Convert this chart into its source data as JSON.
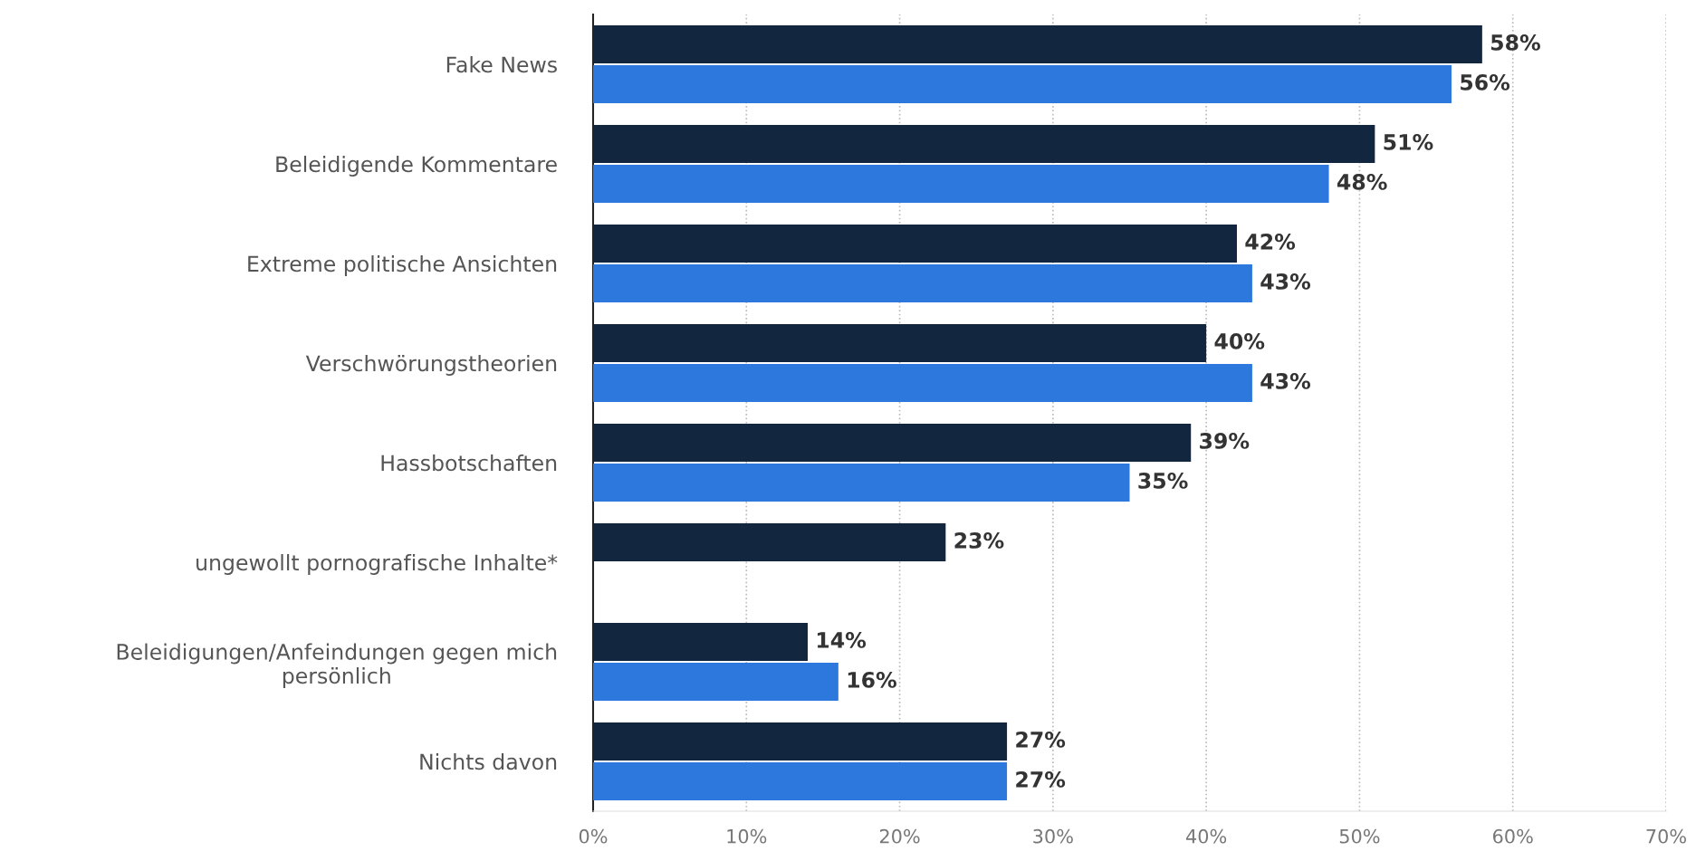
{
  "chart_data": {
    "type": "bar",
    "orientation": "horizontal",
    "categories": [
      "Fake News",
      "Beleidigende Kommentare",
      "Extreme politische Ansichten",
      "Verschwörungstheorien",
      "Hassbotschaften",
      "ungewollt pornografische Inhalte*",
      "Beleidigungen/Anfeindungen gegen mich\npersönlich",
      "Nichts davon"
    ],
    "series": [
      {
        "color": "#12263f",
        "values": [
          58,
          51,
          42,
          40,
          39,
          23,
          14,
          27
        ],
        "value_labels": [
          "58%",
          "51%",
          "42%",
          "40%",
          "39%",
          "23%",
          "14%",
          "27%"
        ]
      },
      {
        "color": "#2d78dd",
        "values": [
          56,
          48,
          43,
          43,
          35,
          null,
          16,
          27
        ],
        "value_labels": [
          "56%",
          "48%",
          "43%",
          "43%",
          "35%",
          null,
          "16%",
          "27%"
        ]
      }
    ],
    "xlim": [
      0,
      70
    ],
    "xticks": [
      {
        "value": 0,
        "label": "0%"
      },
      {
        "value": 10,
        "label": "10%"
      },
      {
        "value": 20,
        "label": "20%"
      },
      {
        "value": 30,
        "label": "30%"
      },
      {
        "value": 40,
        "label": "40%"
      },
      {
        "value": 50,
        "label": "50%"
      },
      {
        "value": 60,
        "label": "60%"
      },
      {
        "value": 70,
        "label": "70%"
      }
    ],
    "grid": "x",
    "legend": false
  }
}
